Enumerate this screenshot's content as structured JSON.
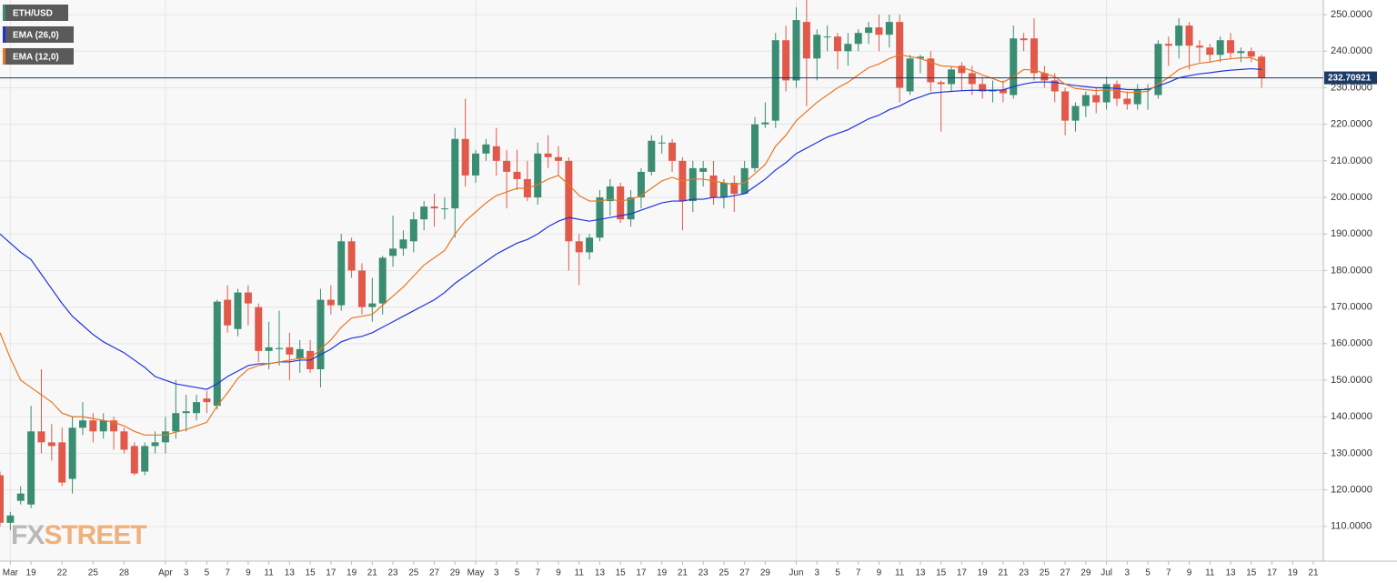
{
  "chart_data": {
    "type": "candlestick",
    "name": "ETH/USD",
    "up_color": "#3a8c72",
    "down_color": "#e0594a",
    "categories": [
      null,
      "Mar",
      null,
      "19",
      null,
      null,
      "22",
      null,
      null,
      "25",
      null,
      null,
      "28",
      null,
      null,
      null,
      "Apr",
      null,
      "3",
      null,
      "5",
      null,
      "7",
      null,
      "9",
      null,
      "11",
      null,
      "13",
      null,
      "15",
      null,
      "17",
      null,
      "19",
      null,
      "21",
      null,
      "23",
      null,
      "25",
      null,
      "27",
      null,
      "29",
      null,
      "May",
      null,
      "3",
      null,
      "5",
      null,
      "7",
      null,
      "9",
      null,
      "11",
      null,
      "13",
      null,
      "15",
      null,
      "17",
      null,
      "19",
      null,
      "21",
      null,
      "23",
      null,
      "25",
      null,
      "27",
      null,
      "29",
      null,
      null,
      "Jun",
      null,
      "3",
      null,
      "5",
      null,
      "7",
      null,
      "9",
      null,
      "11",
      null,
      "13",
      null,
      "15",
      null,
      "17",
      null,
      "19",
      null,
      "21",
      null,
      "23",
      null,
      "25",
      null,
      "27",
      null,
      "29",
      null,
      "Jul",
      null,
      "3",
      null,
      "5",
      null,
      "7",
      null,
      "9",
      null,
      "11",
      null,
      "13",
      null,
      "15",
      null,
      "17",
      null,
      "19",
      null,
      "21"
    ],
    "open": [
      124,
      111,
      117,
      116,
      136,
      133,
      133,
      123,
      137,
      139,
      136,
      139,
      136,
      132,
      125,
      132,
      133,
      136,
      141,
      141,
      145,
      143,
      172,
      164,
      174,
      170,
      158,
      158.5,
      159,
      156,
      158,
      153,
      172,
      170.5,
      188,
      180,
      170,
      171,
      184,
      186,
      188,
      194,
      197.5,
      197,
      197,
      216,
      206,
      212,
      214,
      210,
      207,
      205,
      200,
      212,
      211,
      210,
      188,
      185,
      189,
      199,
      203,
      194,
      200,
      207,
      215,
      215,
      210,
      199,
      207,
      206,
      200,
      204,
      201,
      208,
      220,
      221,
      243,
      232,
      248,
      238,
      244,
      244,
      240,
      242,
      245,
      246.5,
      244.5,
      248,
      229,
      238,
      238,
      231.5,
      231,
      236,
      234,
      231,
      229,
      229.5,
      228,
      243.5,
      243.5,
      234,
      232,
      229,
      221,
      225,
      228,
      226,
      231,
      227,
      225.5,
      229.5,
      228,
      242,
      241.5,
      247,
      241.5,
      241,
      239,
      243,
      239.5,
      240,
      238.5,
      null,
      null,
      null,
      null,
      null
    ],
    "high": [
      125,
      114,
      121,
      143,
      153,
      138,
      137,
      140,
      144,
      141,
      141,
      140,
      137,
      133,
      133,
      136,
      140,
      150,
      146,
      146,
      147,
      172,
      176,
      175,
      176,
      171,
      166,
      169,
      163,
      161,
      161,
      175,
      176,
      190,
      189,
      182,
      178,
      184,
      195,
      191,
      196,
      199,
      201,
      200,
      219,
      227,
      213,
      216,
      219,
      213,
      213,
      210,
      215,
      217,
      214,
      211,
      190,
      190,
      202,
      205,
      204,
      202,
      208,
      217,
      217,
      216,
      211,
      210,
      210,
      210,
      205,
      206,
      210,
      222,
      226,
      245,
      247,
      252,
      254,
      246,
      247,
      245,
      245,
      246,
      248,
      250,
      250,
      250,
      239,
      239,
      240,
      232,
      236,
      237,
      236,
      233,
      232,
      232,
      247,
      245,
      249,
      236,
      234,
      230,
      226,
      229,
      230,
      233,
      232,
      229,
      231,
      231,
      243,
      244,
      249,
      248,
      243,
      242,
      244,
      245,
      241,
      241,
      239,
      null,
      null,
      null,
      null,
      null
    ],
    "low": [
      110,
      109,
      116,
      115,
      130,
      128,
      121,
      119,
      135,
      133,
      134,
      131,
      130,
      124,
      124,
      130,
      130,
      134,
      136,
      139,
      141,
      142,
      163,
      162,
      165,
      155,
      153,
      154,
      150,
      152,
      152,
      148,
      168,
      169,
      178,
      168,
      166,
      168,
      181,
      184,
      185,
      191,
      192,
      194,
      189,
      203,
      204,
      210,
      206,
      197,
      202,
      199,
      198,
      208,
      206,
      180,
      176,
      183,
      188,
      195,
      193,
      192,
      197,
      206,
      212,
      207,
      191,
      196,
      203,
      198,
      197,
      196,
      201,
      207,
      219,
      219,
      229,
      230,
      225,
      232,
      240,
      235,
      236,
      240,
      242,
      240,
      241,
      226,
      228,
      234,
      229,
      218,
      229,
      229,
      228,
      227,
      226,
      226,
      227,
      240,
      232,
      230,
      226,
      217,
      218,
      222,
      223,
      224,
      225,
      224,
      224,
      224,
      227,
      236,
      238,
      235,
      237,
      237,
      237,
      238,
      237,
      237,
      230,
      null,
      null,
      null,
      null,
      null
    ],
    "close": [
      111,
      113,
      119,
      136,
      133,
      132,
      122,
      137,
      139,
      136,
      139,
      136,
      131,
      124.5,
      132,
      133,
      136,
      141,
      141.5,
      144,
      144,
      171.5,
      165,
      174,
      171,
      158,
      159,
      158.8,
      157,
      158.5,
      153,
      172,
      170.5,
      188,
      180,
      170,
      171,
      183.5,
      186,
      188.5,
      194,
      197.5,
      197,
      197,
      216,
      206,
      212,
      214.5,
      210,
      207,
      205,
      200,
      212,
      211,
      210,
      188,
      185,
      189,
      200,
      203,
      194,
      200,
      207,
      215.5,
      215,
      210,
      199,
      208,
      208,
      200,
      204,
      201,
      208,
      220,
      220.5,
      243,
      232,
      248.5,
      238,
      244.5,
      244,
      240,
      242,
      245,
      246.5,
      244.5,
      248,
      230,
      238,
      238.5,
      231.5,
      231,
      235,
      234,
      231,
      229,
      229.5,
      228.5,
      243.5,
      243,
      234,
      232,
      229,
      221,
      225,
      228,
      226,
      231,
      227,
      225.5,
      229.5,
      229.8,
      242,
      241.5,
      247,
      241.5,
      241,
      239,
      243,
      239.5,
      240,
      238.5,
      232.7,
      null,
      null,
      null,
      null,
      null
    ],
    "series": [
      {
        "name": "EMA (26,0)",
        "color": "#1f34d8",
        "values": [
          190,
          187.5,
          185,
          183,
          179,
          175,
          171,
          167.5,
          165,
          162.5,
          160.5,
          159,
          157.5,
          155.5,
          153.5,
          151,
          150,
          149,
          148.5,
          148,
          147.5,
          149,
          151,
          152.5,
          154,
          154.5,
          154.5,
          155,
          155,
          155.5,
          155.5,
          157,
          158.5,
          160.5,
          161.5,
          162,
          163,
          164.5,
          166,
          167.5,
          169,
          170.5,
          172,
          174,
          176.5,
          178.5,
          180.5,
          182.5,
          184.5,
          186,
          187.5,
          188.5,
          190,
          192,
          193.5,
          194.5,
          194,
          193.5,
          194,
          194.5,
          195,
          195.5,
          196.5,
          197.5,
          198.5,
          199,
          199,
          199.5,
          199.5,
          200,
          200,
          200.5,
          201,
          203,
          205,
          207.5,
          209.5,
          212,
          213.5,
          215,
          216.5,
          217.5,
          218.5,
          220,
          221.5,
          222.5,
          224,
          225,
          226.5,
          227.5,
          228.5,
          228.8,
          229,
          229.2,
          229.3,
          229.3,
          229.3,
          229.4,
          230.3,
          231,
          231.5,
          231.6,
          231.5,
          231,
          230.6,
          230.3,
          230,
          230,
          229.8,
          229.5,
          229.5,
          229.5,
          230.5,
          231.5,
          232.7,
          233.3,
          233.8,
          234.1,
          234.5,
          234.8,
          235,
          235.2,
          235,
          null,
          null,
          null,
          null,
          null
        ]
      },
      {
        "name": "EMA (12,0)",
        "color": "#e8771f",
        "values": [
          163,
          156,
          150,
          148,
          146,
          144,
          141,
          140,
          140,
          139.5,
          139,
          138.5,
          137.5,
          136,
          135,
          135,
          135,
          135.8,
          136.5,
          137.5,
          138.5,
          143,
          146.5,
          150.5,
          153,
          154,
          154.5,
          155,
          155.5,
          156,
          156,
          158.5,
          161,
          164.5,
          167,
          167.5,
          168,
          170.5,
          173,
          175.5,
          178.5,
          181.5,
          183.5,
          185.5,
          190,
          193.5,
          196,
          198.5,
          200.5,
          201.5,
          202.5,
          202.5,
          203.5,
          205,
          206,
          203.5,
          200.5,
          199,
          199,
          199.5,
          199,
          199.5,
          200.5,
          202.5,
          204.5,
          205.5,
          204.5,
          205,
          205,
          204.5,
          204,
          203.5,
          204,
          206.5,
          209,
          214,
          217,
          221,
          223.5,
          226,
          228,
          230,
          231.5,
          233.5,
          235.5,
          236.5,
          238,
          239,
          238.5,
          238,
          237,
          236,
          235.8,
          235.5,
          234.7,
          233.5,
          232.5,
          231.5,
          233,
          235,
          234.8,
          234,
          233,
          231,
          229.8,
          229.5,
          229.2,
          229.5,
          229.2,
          228.7,
          228.8,
          229,
          231,
          232.8,
          235,
          236,
          236.7,
          237,
          237.6,
          237.9,
          238.2,
          238.2,
          237,
          null,
          null,
          null,
          null,
          null
        ]
      }
    ],
    "last_price": 232.70921,
    "ylim": [
      100.5,
      254
    ],
    "yticks": [
      {
        "value": 110,
        "label": "110.0000"
      },
      {
        "value": 120,
        "label": "120.0000"
      },
      {
        "value": 130,
        "label": "130.0000"
      },
      {
        "value": 140,
        "label": "140.0000"
      },
      {
        "value": 150,
        "label": "150.0000"
      },
      {
        "value": 160,
        "label": "160.0000"
      },
      {
        "value": 170,
        "label": "170.0000"
      },
      {
        "value": 180,
        "label": "180.0000"
      },
      {
        "value": 190,
        "label": "190.0000"
      },
      {
        "value": 200,
        "label": "200.0000"
      },
      {
        "value": 210,
        "label": "210.0000"
      },
      {
        "value": 220,
        "label": "220.0000"
      },
      {
        "value": 230,
        "label": "230.0000"
      },
      {
        "value": 240,
        "label": "240.0000"
      },
      {
        "value": 250,
        "label": "250.0000"
      }
    ],
    "grid": true,
    "watermark": [
      "FX",
      "STREET"
    ]
  }
}
